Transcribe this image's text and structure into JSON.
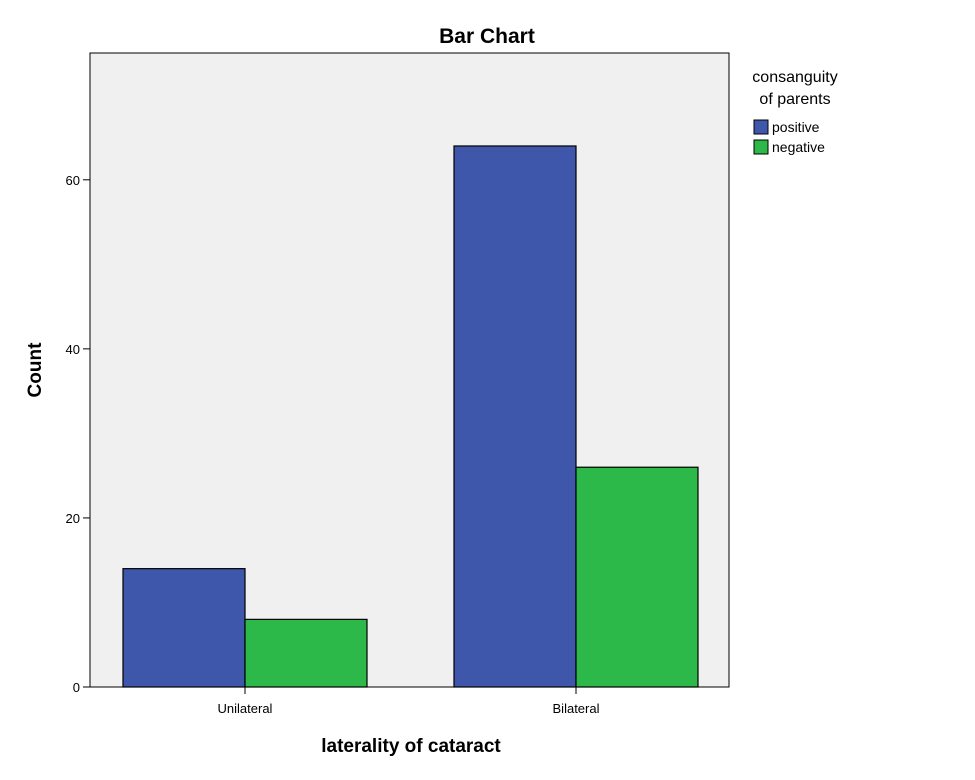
{
  "chart_data": {
    "type": "bar",
    "title": "Bar Chart",
    "xlabel": "laterality of cataract",
    "ylabel": "Count",
    "categories": [
      "Unilateral",
      "Bilateral"
    ],
    "series": [
      {
        "name": "positive",
        "values": [
          14,
          64
        ],
        "color": "#3f57ab"
      },
      {
        "name": "negative",
        "values": [
          8,
          26
        ],
        "color": "#2db84a"
      }
    ],
    "ylim": [
      0,
      75
    ],
    "yticks": [
      0,
      20,
      40,
      60
    ],
    "grid": false,
    "plot_background": "#f0f0f0",
    "legend": {
      "title_lines": [
        "consanguity",
        "of parents"
      ],
      "placement": "right"
    }
  }
}
